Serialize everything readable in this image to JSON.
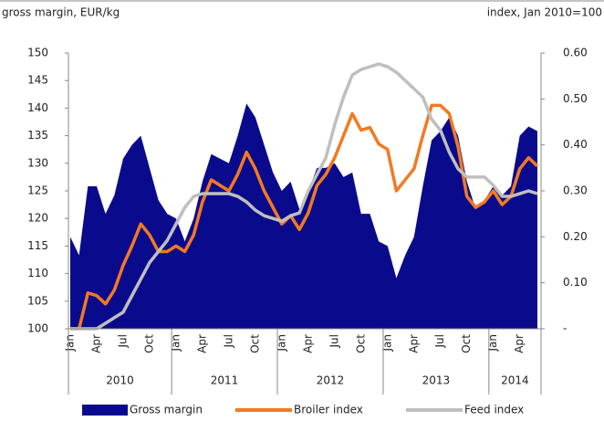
{
  "chart_data": {
    "type": "area-line",
    "y_label": "gross margin, EUR/kg",
    "y2_label": "index, Jan 2010=100",
    "categories": [
      "Jan",
      null,
      null,
      "Apr",
      null,
      null,
      "Jul",
      null,
      null,
      "Oct",
      null,
      null,
      "Jan",
      null,
      null,
      "Apr",
      null,
      null,
      "Jul",
      null,
      null,
      "Oct",
      null,
      null,
      "Jan",
      null,
      null,
      "Apr",
      null,
      null,
      "Jul",
      null,
      null,
      "Oct",
      null,
      null,
      "Jan",
      null,
      null,
      "Apr",
      null,
      null,
      "Jul",
      null,
      null,
      "Oct",
      null,
      null,
      "Jan",
      null,
      null,
      "Apr",
      null,
      null
    ],
    "year_groups": [
      "2010",
      "2011",
      "2012",
      "2013",
      "2014"
    ],
    "ylim": [
      100,
      150
    ],
    "yticks": [
      100,
      105,
      110,
      115,
      120,
      125,
      130,
      135,
      140,
      145,
      150
    ],
    "y2lim": [
      0,
      0.6
    ],
    "y2ticks": [
      {
        "value": 0,
        "label": "-"
      },
      {
        "value": 0.1,
        "label": "0.10"
      },
      {
        "value": 0.2,
        "label": "0.20"
      },
      {
        "value": 0.3,
        "label": "0.30"
      },
      {
        "value": 0.4,
        "label": "0.40"
      },
      {
        "value": 0.5,
        "label": "0.50"
      },
      {
        "value": 0.6,
        "label": "0.60"
      }
    ],
    "series": [
      {
        "name": "Gross margin",
        "kind": "area",
        "axis": "y2",
        "color": "#0a0a8c",
        "values": [
          0.2,
          0.16,
          0.31,
          0.31,
          0.25,
          0.29,
          0.37,
          0.4,
          0.42,
          0.35,
          0.28,
          0.25,
          0.24,
          0.19,
          0.24,
          0.32,
          0.38,
          0.37,
          0.36,
          0.42,
          0.49,
          0.46,
          0.4,
          0.34,
          0.3,
          0.32,
          0.26,
          0.3,
          0.35,
          0.35,
          0.36,
          0.33,
          0.34,
          0.25,
          0.25,
          0.19,
          0.18,
          0.11,
          0.16,
          0.2,
          0.31,
          0.41,
          0.43,
          0.46,
          0.42,
          0.32,
          0.26,
          0.28,
          0.31,
          0.29,
          0.31,
          0.42,
          0.44,
          0.43
        ]
      },
      {
        "name": "Broiler index",
        "kind": "line",
        "color": "#f47920",
        "values": [
          100,
          100,
          106.5,
          106,
          104.5,
          107,
          111.5,
          115,
          119,
          117,
          114,
          114,
          115,
          114,
          117,
          123,
          127,
          126,
          125,
          128,
          132,
          129,
          125,
          122,
          119,
          120.5,
          118,
          121,
          126,
          128,
          131,
          135,
          139,
          136,
          136.5,
          133.5,
          132.5,
          125,
          127,
          129,
          135,
          140.5,
          140.5,
          139,
          133,
          124,
          122,
          123,
          125,
          122.5,
          124,
          129,
          131,
          129.5
        ]
      },
      {
        "name": "Feed index",
        "kind": "line",
        "color": "#bfbfbf",
        "values": [
          100,
          100,
          100,
          100,
          101,
          102,
          103,
          106,
          109,
          112,
          114,
          116,
          119,
          122,
          124,
          124.5,
          124.5,
          124.5,
          124.5,
          124,
          123,
          121.5,
          120.5,
          120,
          119.5,
          120.5,
          121,
          125,
          128,
          131,
          137,
          142,
          146,
          147,
          147.5,
          148,
          147.5,
          146.5,
          145,
          143.5,
          142,
          138,
          136,
          132,
          129,
          127.5,
          127.5,
          127.5,
          126,
          124,
          124,
          124.5,
          125,
          124.5
        ]
      }
    ]
  }
}
